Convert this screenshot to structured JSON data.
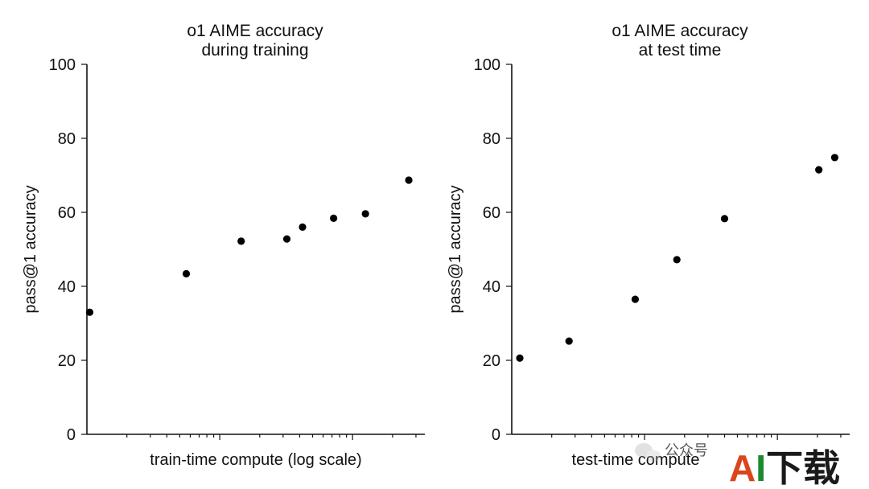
{
  "chart_data": [
    {
      "type": "scatter",
      "title": [
        "o1 AIME accuracy",
        "during training"
      ],
      "xlabel": "train-time compute (log scale)",
      "ylabel": "pass@1 accuracy",
      "x_scale": "log",
      "x_tick_labels": "none",
      "ylim": [
        0,
        100
      ],
      "yticks": [
        0,
        20,
        40,
        60,
        80,
        100
      ],
      "grid": false,
      "legend": "none",
      "points": [
        {
          "x": 1.05,
          "y": 33
        },
        {
          "x": 5.6,
          "y": 43.4
        },
        {
          "x": 14.5,
          "y": 52.2
        },
        {
          "x": 32,
          "y": 52.8
        },
        {
          "x": 42,
          "y": 56
        },
        {
          "x": 72,
          "y": 58.4
        },
        {
          "x": 125,
          "y": 59.6
        },
        {
          "x": 265,
          "y": 68.7
        }
      ]
    },
    {
      "type": "scatter",
      "title": [
        "o1 AIME accuracy",
        "at test time"
      ],
      "xlabel": "test-time compute",
      "ylabel": "pass@1 accuracy",
      "x_scale": "log",
      "x_tick_labels": "none",
      "ylim": [
        0,
        100
      ],
      "yticks": [
        0,
        20,
        40,
        60,
        80,
        100
      ],
      "grid": false,
      "legend": "none",
      "points": [
        {
          "x": 1.15,
          "y": 20.6
        },
        {
          "x": 2.7,
          "y": 25.2
        },
        {
          "x": 8.5,
          "y": 36.5
        },
        {
          "x": 17.5,
          "y": 47.2
        },
        {
          "x": 40,
          "y": 58.3
        },
        {
          "x": 205,
          "y": 71.5
        },
        {
          "x": 270,
          "y": 74.8
        }
      ]
    }
  ],
  "watermark": {
    "text": "AI下载",
    "faint_text": "公众号",
    "colors": {
      "a": "#d9461c",
      "i": "#1b8a2e",
      "rest": "#1a1a1a"
    }
  },
  "colors": {
    "points": "#000000",
    "axes": "#111111",
    "background": "#ffffff"
  }
}
